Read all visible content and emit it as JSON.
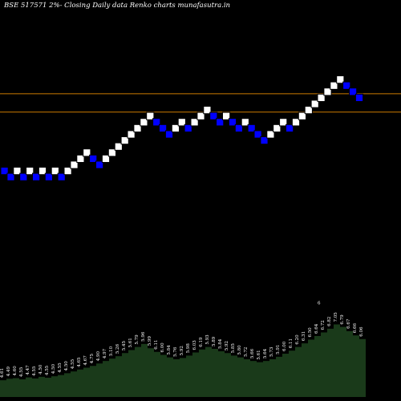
{
  "chart_data": {
    "type": "renko",
    "title": "BSE 517571 2%-  Closing Daily data  Renko  charts munafasutra.in",
    "colors": {
      "background": "#000000",
      "brick_up": "#ffffff",
      "brick_down": "#0000ff",
      "brick_border": "#000000",
      "reference_line": "#cc7a00",
      "volume_fill": "#1a3a1a",
      "volume_label": "#ffffff"
    },
    "reference_lines": [
      6.65,
      6.11
    ],
    "bricks": [
      {
        "dir": "down",
        "value": 4.48
      },
      {
        "dir": "down",
        "value": 4.3
      },
      {
        "dir": "up",
        "value": 4.48
      },
      {
        "dir": "down",
        "value": 4.3
      },
      {
        "dir": "up",
        "value": 4.48
      },
      {
        "dir": "down",
        "value": 4.3
      },
      {
        "dir": "up",
        "value": 4.48
      },
      {
        "dir": "down",
        "value": 4.3
      },
      {
        "dir": "up",
        "value": 4.48
      },
      {
        "dir": "down",
        "value": 4.3
      },
      {
        "dir": "up",
        "value": 4.48
      },
      {
        "dir": "up",
        "value": 4.66
      },
      {
        "dir": "up",
        "value": 4.84
      },
      {
        "dir": "up",
        "value": 5.02
      },
      {
        "dir": "down",
        "value": 4.84
      },
      {
        "dir": "down",
        "value": 4.66
      },
      {
        "dir": "up",
        "value": 4.84
      },
      {
        "dir": "up",
        "value": 5.02
      },
      {
        "dir": "up",
        "value": 5.2
      },
      {
        "dir": "up",
        "value": 5.38
      },
      {
        "dir": "up",
        "value": 5.56
      },
      {
        "dir": "up",
        "value": 5.74
      },
      {
        "dir": "up",
        "value": 5.92
      },
      {
        "dir": "up",
        "value": 6.1
      },
      {
        "dir": "down",
        "value": 5.92
      },
      {
        "dir": "down",
        "value": 5.74
      },
      {
        "dir": "down",
        "value": 5.56
      },
      {
        "dir": "up",
        "value": 5.74
      },
      {
        "dir": "up",
        "value": 5.92
      },
      {
        "dir": "down",
        "value": 5.74
      },
      {
        "dir": "up",
        "value": 5.92
      },
      {
        "dir": "up",
        "value": 6.1
      },
      {
        "dir": "up",
        "value": 6.28
      },
      {
        "dir": "down",
        "value": 6.1
      },
      {
        "dir": "down",
        "value": 5.92
      },
      {
        "dir": "up",
        "value": 6.1
      },
      {
        "dir": "down",
        "value": 5.92
      },
      {
        "dir": "down",
        "value": 5.74
      },
      {
        "dir": "up",
        "value": 5.92
      },
      {
        "dir": "down",
        "value": 5.74
      },
      {
        "dir": "down",
        "value": 5.56
      },
      {
        "dir": "down",
        "value": 5.38
      },
      {
        "dir": "up",
        "value": 5.56
      },
      {
        "dir": "up",
        "value": 5.74
      },
      {
        "dir": "up",
        "value": 5.92
      },
      {
        "dir": "down",
        "value": 5.74
      },
      {
        "dir": "up",
        "value": 5.92
      },
      {
        "dir": "up",
        "value": 6.1
      },
      {
        "dir": "up",
        "value": 6.28
      },
      {
        "dir": "up",
        "value": 6.46
      },
      {
        "dir": "up",
        "value": 6.64
      },
      {
        "dir": "up",
        "value": 6.82
      },
      {
        "dir": "up",
        "value": 7.0
      },
      {
        "dir": "up",
        "value": 7.18
      },
      {
        "dir": "down",
        "value": 7.0
      },
      {
        "dir": "down",
        "value": 6.82
      },
      {
        "dir": "down",
        "value": 6.64
      }
    ],
    "volume": [
      {
        "value": 0.55,
        "label": "4.61"
      },
      {
        "value": 0.6,
        "label": "4.49"
      },
      {
        "value": 0.62,
        "label": "4.60"
      },
      {
        "value": 0.58,
        "label": "4.55"
      },
      {
        "value": 0.64,
        "label": "4.47"
      },
      {
        "value": 0.61,
        "label": "4.55"
      },
      {
        "value": 0.66,
        "label": "4.50"
      },
      {
        "value": 0.63,
        "label": "4.55"
      },
      {
        "value": 0.68,
        "label": "4.50"
      },
      {
        "value": 0.72,
        "label": "4.55"
      },
      {
        "value": 0.78,
        "label": "4.50"
      },
      {
        "value": 0.84,
        "label": "4.55"
      },
      {
        "value": 0.9,
        "label": "4.65"
      },
      {
        "value": 0.96,
        "label": "4.67"
      },
      {
        "value": 1.02,
        "label": "4.75"
      },
      {
        "value": 1.1,
        "label": "4.90"
      },
      {
        "value": 1.18,
        "label": "4.97"
      },
      {
        "value": 1.26,
        "label": "5.10"
      },
      {
        "value": 1.34,
        "label": "5.26"
      },
      {
        "value": 1.44,
        "label": "5.45"
      },
      {
        "value": 1.54,
        "label": "5.61"
      },
      {
        "value": 1.64,
        "label": "5.79"
      },
      {
        "value": 1.74,
        "label": "5.96"
      },
      {
        "value": 1.6,
        "label": "5.99"
      },
      {
        "value": 1.48,
        "label": "6.11"
      },
      {
        "value": 1.38,
        "label": "6.00"
      },
      {
        "value": 1.3,
        "label": "5.84"
      },
      {
        "value": 1.24,
        "label": "5.76"
      },
      {
        "value": 1.28,
        "label": "5.92"
      },
      {
        "value": 1.36,
        "label": "5.98"
      },
      {
        "value": 1.46,
        "label": "6.03"
      },
      {
        "value": 1.56,
        "label": "6.19"
      },
      {
        "value": 1.64,
        "label": "5.93"
      },
      {
        "value": 1.58,
        "label": "5.89"
      },
      {
        "value": 1.5,
        "label": "5.84"
      },
      {
        "value": 1.44,
        "label": "5.92"
      },
      {
        "value": 1.36,
        "label": "5.85"
      },
      {
        "value": 1.3,
        "label": "5.80"
      },
      {
        "value": 1.24,
        "label": "5.72"
      },
      {
        "value": 1.18,
        "label": "5.66"
      },
      {
        "value": 1.14,
        "label": "5.61"
      },
      {
        "value": 1.18,
        "label": "5.64"
      },
      {
        "value": 1.24,
        "label": "5.73"
      },
      {
        "value": 1.32,
        "label": "5.91"
      },
      {
        "value": 1.42,
        "label": "6.00"
      },
      {
        "value": 1.52,
        "label": "6.11"
      },
      {
        "value": 1.64,
        "label": "6.20"
      },
      {
        "value": 1.76,
        "label": "6.31"
      },
      {
        "value": 1.88,
        "label": "6.50"
      },
      {
        "value": 2.0,
        "label": "6.64"
      },
      {
        "value": 2.12,
        "label": "6.72"
      },
      {
        "value": 2.24,
        "label": "6.82"
      },
      {
        "value": 2.38,
        "label": "7.05"
      },
      {
        "value": 2.3,
        "label": "6.79"
      },
      {
        "value": 2.16,
        "label": "6.67"
      },
      {
        "value": 2.02,
        "label": "6.66"
      },
      {
        "value": 1.9,
        "label": "6.06"
      }
    ],
    "volume_peak_label": "6"
  }
}
